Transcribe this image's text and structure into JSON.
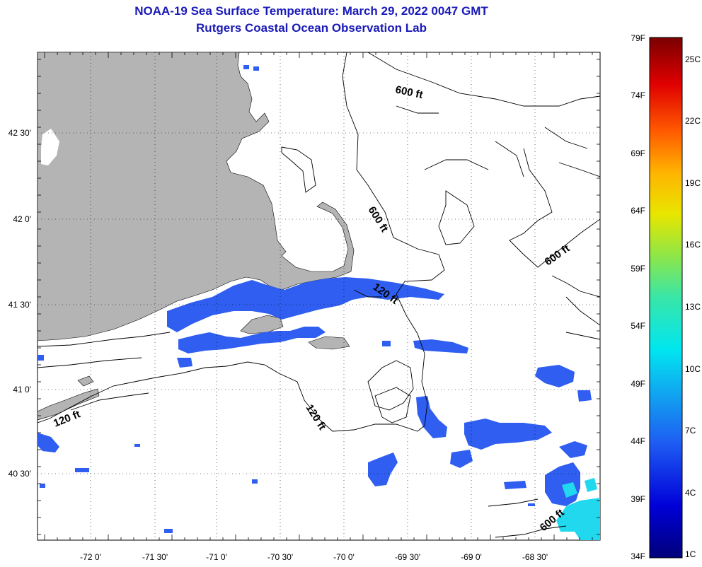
{
  "header": {
    "title": "NOAA-19 Sea Surface Temperature:  March 29, 2022 0047 GMT",
    "subtitle": "Rutgers Coastal Ocean Observation Lab"
  },
  "axes": {
    "longitude_labels": [
      "-72 0'",
      "-71 30'",
      "-71 0'",
      "-70 30'",
      "-70 0'",
      "-69 30'",
      "-69 0'",
      "-68 30'"
    ],
    "latitude_labels": [
      "42 30'",
      "42 0'",
      "41 30'",
      "41 0'",
      "40 30'"
    ]
  },
  "contours": {
    "label_600_a": "600 ft",
    "label_600_b": "600 ft",
    "label_600_c": "600 ft",
    "label_600_d": "600 ft",
    "label_120_a": "120 ft",
    "label_120_b": "120 ft",
    "label_120_c": "120 ft"
  },
  "colorbar": {
    "fahrenheit_labels": [
      "79F",
      "74F",
      "69F",
      "64F",
      "59F",
      "54F",
      "49F",
      "44F",
      "39F",
      "34F"
    ],
    "celsius_labels": [
      "25C",
      "22C",
      "19C",
      "16C",
      "13C",
      "10C",
      "7C",
      "4C",
      "1C"
    ]
  },
  "colors": {
    "land": "#b4b4b4",
    "ocean_blank": "#ffffff",
    "sst_blue": "#2f5ef0",
    "sst_cyan": "#22d8ee",
    "title_color": "#1a1ab8"
  }
}
